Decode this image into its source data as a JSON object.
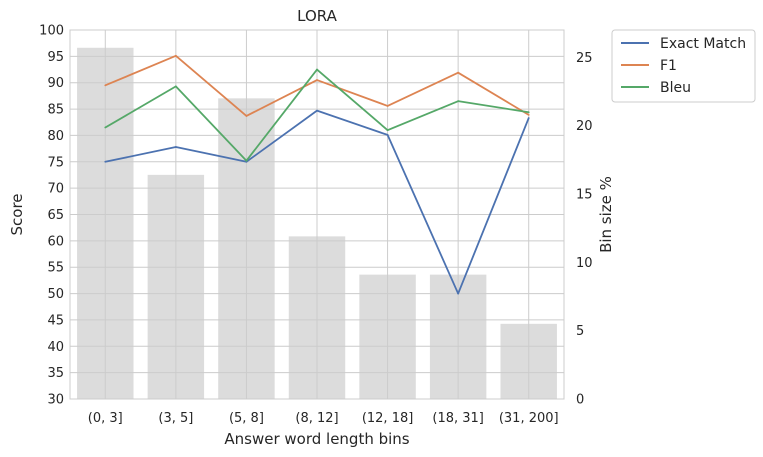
{
  "chart_data": {
    "type": "line",
    "title": "LORA",
    "xlabel": "Answer word length bins",
    "ylabel": "Score",
    "y2label": "Bin size %",
    "categories": [
      "(0, 3]",
      "(3, 5]",
      "(5, 8]",
      "(8, 12]",
      "(12, 18]",
      "(18, 31]",
      "(31, 200]"
    ],
    "ylim": [
      30,
      100
    ],
    "yticks": [
      30,
      35,
      40,
      45,
      50,
      55,
      60,
      65,
      70,
      75,
      80,
      85,
      90,
      95,
      100
    ],
    "y2lim": [
      0,
      27
    ],
    "y2ticks": [
      0,
      5,
      10,
      15,
      20,
      25
    ],
    "grid": true,
    "legend_position": "outside-top-right",
    "bins": {
      "name": "Bin size %",
      "values": [
        25.7,
        16.4,
        22.0,
        11.9,
        9.1,
        9.1,
        5.5
      ],
      "color": "#dcdcdc"
    },
    "series": [
      {
        "name": "Exact Match",
        "color": "#4c72b0",
        "values": [
          75.0,
          77.8,
          75.0,
          84.7,
          80.1,
          50.0,
          83.3
        ]
      },
      {
        "name": "F1",
        "color": "#dd8452",
        "values": [
          89.5,
          95.1,
          83.7,
          90.5,
          85.6,
          91.9,
          83.9
        ]
      },
      {
        "name": "Bleu",
        "color": "#55a868",
        "values": [
          81.5,
          89.3,
          75.2,
          92.5,
          81.0,
          86.5,
          84.4
        ]
      }
    ]
  }
}
